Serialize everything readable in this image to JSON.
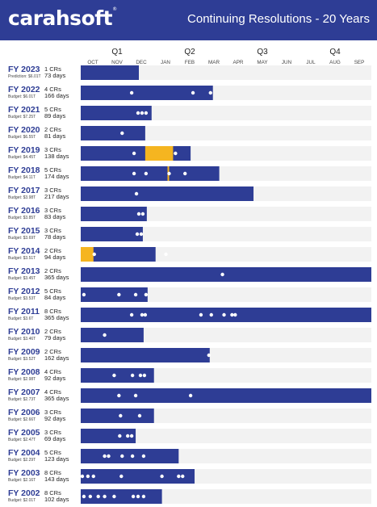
{
  "header": {
    "logo": "carahsoft",
    "logo_mark": "®",
    "title": "Continuing Resolutions - 20 Years"
  },
  "colors": {
    "header_bg": "#2e3d95",
    "bar": "#2e3d95",
    "shutdown": "#f5b520",
    "track": "#f2f2f2",
    "dot": "#ffffff",
    "label": "#2e3d95"
  },
  "chart_data": {
    "type": "bar",
    "title": "Continuing Resolutions - 20 Years",
    "quarters": [
      "Q1",
      "Q2",
      "Q3",
      "Q4"
    ],
    "months": [
      "OCT",
      "NOV",
      "DEC",
      "JAN",
      "FEB",
      "MAR",
      "APR",
      "MAY",
      "JUN",
      "JUL",
      "AUG",
      "SEP"
    ],
    "xlim_days": [
      0,
      365
    ],
    "rows": [
      {
        "fy": "FY 2023",
        "crs": "1 CRs",
        "budget": "Prediction: $6.01T",
        "days_label": "73 days",
        "days": 73,
        "cr_dates": [],
        "shutdowns": []
      },
      {
        "fy": "FY 2022",
        "crs": "4 CRs",
        "budget": "Budget: $6.01T",
        "days_label": "166 days",
        "days": 166,
        "cr_dates": [
          64,
          141,
          163
        ],
        "shutdowns": []
      },
      {
        "fy": "FY 2021",
        "crs": "5 CRs",
        "budget": "Budget: $7.25T",
        "days_label": "89 days",
        "days": 89,
        "cr_dates": [
          72,
          77,
          82
        ],
        "shutdowns": []
      },
      {
        "fy": "FY 2020",
        "crs": "2 CRs",
        "budget": "Budget: $6.55T",
        "days_label": "81 days",
        "days": 81,
        "cr_dates": [
          52
        ],
        "shutdowns": []
      },
      {
        "fy": "FY 2019",
        "crs": "3 CRs",
        "budget": "Budget: $4.45T",
        "days_label": "138 days",
        "days": 138,
        "cr_dates": [
          67,
          119
        ],
        "shutdowns": [
          {
            "start": 81,
            "end": 116
          }
        ]
      },
      {
        "fy": "FY 2018",
        "crs": "5 CRs",
        "budget": "Budget: $4.11T",
        "days_label": "174 days",
        "days": 174,
        "cr_dates": [
          67,
          82,
          111,
          131
        ],
        "shutdowns": [
          {
            "start": 109,
            "end": 111
          }
        ]
      },
      {
        "fy": "FY 2017",
        "crs": "3 CRs",
        "budget": "Budget: $3.98T",
        "days_label": "217 days",
        "days": 217,
        "cr_dates": [
          70
        ],
        "shutdowns": []
      },
      {
        "fy": "FY 2016",
        "crs": "3 CRs",
        "budget": "Budget: $3.85T",
        "days_label": "83 days",
        "days": 83,
        "cr_dates": [
          73,
          78
        ],
        "shutdowns": []
      },
      {
        "fy": "FY 2015",
        "crs": "3 CRs",
        "budget": "Budget: $3.69T",
        "days_label": "78 days",
        "days": 78,
        "cr_dates": [
          71,
          76
        ],
        "shutdowns": []
      },
      {
        "fy": "FY 2014",
        "crs": "2 CRs",
        "budget": "Budget: $3.51T",
        "days_label": "94 days",
        "days": 94,
        "cr_dates": [
          17,
          107
        ],
        "shutdowns": [
          {
            "start": 0,
            "end": 16
          }
        ]
      },
      {
        "fy": "FY 2013",
        "crs": "2 CRs",
        "budget": "Budget: $3.45T",
        "days_label": "365 days",
        "days": 365,
        "cr_dates": [
          178
        ],
        "shutdowns": []
      },
      {
        "fy": "FY 2012",
        "crs": "5 CRs",
        "budget": "Budget: $3.53T",
        "days_label": "84 days",
        "days": 84,
        "cr_dates": [
          4,
          48,
          69,
          82
        ],
        "shutdowns": []
      },
      {
        "fy": "FY 2011",
        "crs": "8 CRs",
        "budget": "Budget: $3.6T",
        "days_label": "365 days",
        "days": 365,
        "cr_dates": [
          64,
          77,
          81,
          151,
          164,
          180,
          190,
          194
        ],
        "shutdowns": []
      },
      {
        "fy": "FY 2010",
        "crs": "2 CRs",
        "budget": "Budget: $3.46T",
        "days_label": "79 days",
        "days": 79,
        "cr_dates": [
          30
        ],
        "shutdowns": []
      },
      {
        "fy": "FY 2009",
        "crs": "2 CRs",
        "budget": "Budget: $3.52T",
        "days_label": "162 days",
        "days": 162,
        "cr_dates": [
          161
        ],
        "shutdowns": []
      },
      {
        "fy": "FY 2008",
        "crs": "4 CRs",
        "budget": "Budget: $2.98T",
        "days_label": "92 days",
        "days": 92,
        "cr_dates": [
          42,
          65,
          75,
          80
        ],
        "shutdowns": []
      },
      {
        "fy": "FY 2007",
        "crs": "4 CRs",
        "budget": "Budget: $2.73T",
        "days_label": "365 days",
        "days": 365,
        "cr_dates": [
          48,
          69,
          138
        ],
        "shutdowns": []
      },
      {
        "fy": "FY 2006",
        "crs": "3 CRs",
        "budget": "Budget: $2.66T",
        "days_label": "92 days",
        "days": 92,
        "cr_dates": [
          50,
          74
        ],
        "shutdowns": []
      },
      {
        "fy": "FY 2005",
        "crs": "3 CRs",
        "budget": "Budget: $2.47T",
        "days_label": "69 days",
        "days": 69,
        "cr_dates": [
          49,
          59,
          64
        ],
        "shutdowns": []
      },
      {
        "fy": "FY 2004",
        "crs": "5 CRs",
        "budget": "Budget: $2.29T",
        "days_label": "123 days",
        "days": 123,
        "cr_dates": [
          30,
          35,
          52,
          65,
          79
        ],
        "shutdowns": []
      },
      {
        "fy": "FY 2003",
        "crs": "8 CRs",
        "budget": "Budget: $2.16T",
        "days_label": "143 days",
        "days": 143,
        "cr_dates": [
          2,
          9,
          16,
          51,
          102,
          123,
          128
        ],
        "shutdowns": []
      },
      {
        "fy": "FY 2002",
        "crs": "8 CRs",
        "budget": "Budget: $2.01T",
        "days_label": "102 days",
        "days": 102,
        "cr_dates": [
          4,
          12,
          22,
          30,
          42,
          66,
          72,
          79
        ],
        "shutdowns": []
      }
    ]
  }
}
